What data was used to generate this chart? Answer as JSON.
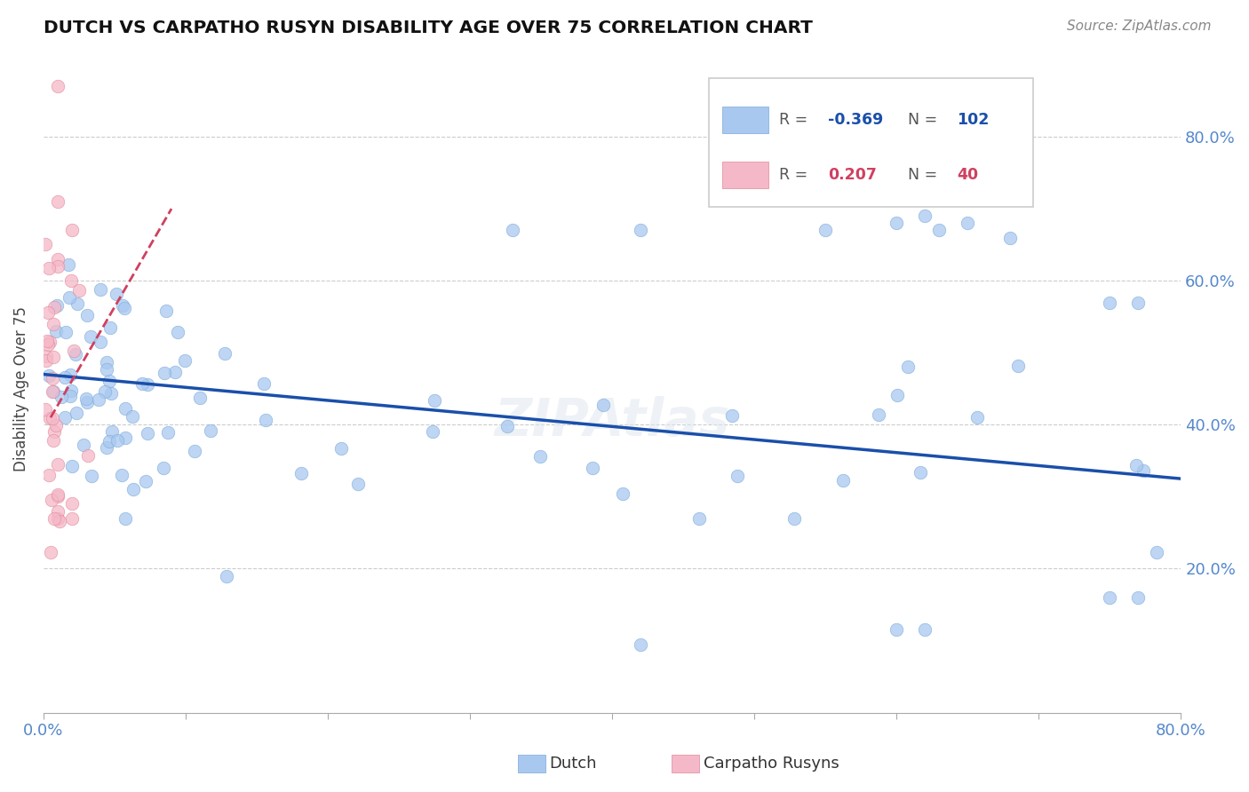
{
  "title": "DUTCH VS CARPATHO RUSYN DISABILITY AGE OVER 75 CORRELATION CHART",
  "source": "Source: ZipAtlas.com",
  "ylabel": "Disability Age Over 75",
  "xlim": [
    0.0,
    0.8
  ],
  "ylim": [
    0.0,
    0.9
  ],
  "dutch_R": -0.369,
  "dutch_N": 102,
  "rusyn_R": 0.207,
  "rusyn_N": 40,
  "dutch_color": "#a8c8f0",
  "dutch_color_edge": "#7aaad8",
  "dutch_line_color": "#1a4faa",
  "rusyn_color": "#f5b8c8",
  "rusyn_color_edge": "#e08898",
  "rusyn_line_color": "#d04060",
  "grid_color": "#cccccc",
  "background_color": "#ffffff",
  "title_color": "#111111",
  "axis_label_color": "#5588cc",
  "source_color": "#888888",
  "watermark": "ZIPAtlas",
  "dutch_seed": 42,
  "rusyn_seed": 99
}
